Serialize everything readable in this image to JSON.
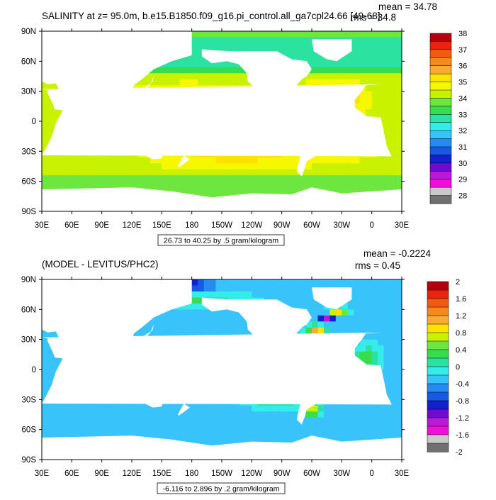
{
  "chart_data": [
    {
      "type": "heatmap",
      "title": "SALINITY at z=  95.0m, b.e15.B1850.f09_g16.pi_control.all_ga7cpl24.66 [49-68]",
      "stats": {
        "mean": "mean = 34.78",
        "rms": "rms = 34.8"
      },
      "contour_info": "26.73 to 40.25 by .5 gram/kilogram",
      "xticks": [
        "30E",
        "60E",
        "90E",
        "120E",
        "150E",
        "180",
        "150W",
        "120W",
        "90W",
        "60W",
        "30W",
        "0",
        "30E"
      ],
      "yticks": [
        "90N",
        "60N",
        "30N",
        "0",
        "30S",
        "60S",
        "90S"
      ],
      "xlim": [
        30,
        390
      ],
      "ylim": [
        -90,
        90
      ],
      "colorbar": {
        "labels": [
          "38",
          "37",
          "36",
          "35",
          "34",
          "33",
          "32",
          "31",
          "30",
          "29",
          "28"
        ],
        "colors": [
          "#b4000e",
          "#e8230e",
          "#f15a0f",
          "#f58a1c",
          "#f8ab34",
          "#fde200",
          "#f7f700",
          "#c8f200",
          "#6ee640",
          "#38dd4e",
          "#2be2a0",
          "#34ece9",
          "#38c3fb",
          "#258bf0",
          "#1759e3",
          "#1220d0",
          "#6f0ad0",
          "#b81ad8",
          "#f00ed8",
          "#c8c8c8",
          "#707070"
        ]
      },
      "field": {
        "base": 34.6,
        "blobs": [
          {
            "lon": 225,
            "lat": -17,
            "rlon": 60,
            "rlat": 22,
            "amp": 1.7
          },
          {
            "lon": 175,
            "lat": 22,
            "rlon": 55,
            "rlat": 12,
            "amp": 0.5
          },
          {
            "lon": 75,
            "lat": 22,
            "rlon": 14,
            "rlat": 10,
            "amp": 1.4
          },
          {
            "lon": 320,
            "lat": 22,
            "rlon": 22,
            "rlat": 12,
            "amp": 2.6
          },
          {
            "lon": 340,
            "lat": -18,
            "rlon": 18,
            "rlat": 12,
            "amp": 1.8
          },
          {
            "lon": 95,
            "lat": 12,
            "rlon": 14,
            "rlat": 10,
            "amp": -1.8
          },
          {
            "lon": 270,
            "lat": 8,
            "rlon": 20,
            "rlat": 6,
            "amp": -0.6
          }
        ],
        "bands": [
          {
            "lat_min": 45,
            "lat_max": 90,
            "value": 33.0
          },
          {
            "lat_min": -90,
            "lat_max": -45,
            "value": 34.1
          }
        ]
      }
    },
    {
      "type": "heatmap",
      "title": "(MODEL - LEVITUS/PHC2)",
      "stats": {
        "mean": "mean = -0.2224",
        "rms": "rms = 0.45"
      },
      "contour_info": "-6.116 to 2.896 by .2 gram/kilogram",
      "xticks": [
        "30E",
        "60E",
        "90E",
        "120E",
        "150E",
        "180",
        "150W",
        "120W",
        "90W",
        "60W",
        "30W",
        "0",
        "30E"
      ],
      "yticks": [
        "90N",
        "60N",
        "30N",
        "0",
        "30S",
        "60S",
        "90S"
      ],
      "xlim": [
        30,
        390
      ],
      "ylim": [
        -90,
        90
      ],
      "colorbar": {
        "labels": [
          "2",
          "1.6",
          "1.2",
          "0.8",
          "0.4",
          "0",
          "-0.4",
          "-0.8",
          "-1.2",
          "-1.6",
          "-2"
        ],
        "colors": [
          "#b4000e",
          "#e8230e",
          "#f15a0f",
          "#f58a1c",
          "#f8ab34",
          "#fde200",
          "#c8f200",
          "#6ee640",
          "#38dd4e",
          "#2be2a0",
          "#34ece9",
          "#38c3fb",
          "#258bf0",
          "#1759e3",
          "#1220d0",
          "#6f0ad0",
          "#b81ad8",
          "#f00ed8",
          "#c8c8c8",
          "#707070"
        ]
      },
      "field": {
        "base": -0.25,
        "blobs": [
          {
            "lon": 150,
            "lat": 84,
            "rlon": 40,
            "rlat": 5,
            "amp": -1.6
          },
          {
            "lon": 315,
            "lat": 52,
            "rlon": 8,
            "rlat": 5,
            "amp": -1.2
          },
          {
            "lon": 325,
            "lat": 58,
            "rlon": 10,
            "rlat": 4,
            "amp": 1.4
          },
          {
            "lon": 305,
            "lat": 40,
            "rlon": 8,
            "rlat": 4,
            "amp": 1.6
          },
          {
            "lon": 62,
            "lat": 22,
            "rlon": 6,
            "rlat": 5,
            "amp": 1.2
          },
          {
            "lon": 290,
            "lat": 20,
            "rlon": 15,
            "rlat": 10,
            "amp": 0.6
          },
          {
            "lon": 355,
            "lat": 10,
            "rlon": 12,
            "rlat": 12,
            "amp": 0.6
          },
          {
            "lon": 265,
            "lat": -30,
            "rlon": 25,
            "rlat": 8,
            "amp": 0.45
          },
          {
            "lon": 160,
            "lat": 70,
            "rlon": 60,
            "rlat": 6,
            "amp": 0.6
          },
          {
            "lon": 300,
            "lat": -40,
            "rlon": 8,
            "rlat": 6,
            "amp": 1.2
          }
        ],
        "bands": []
      }
    }
  ]
}
